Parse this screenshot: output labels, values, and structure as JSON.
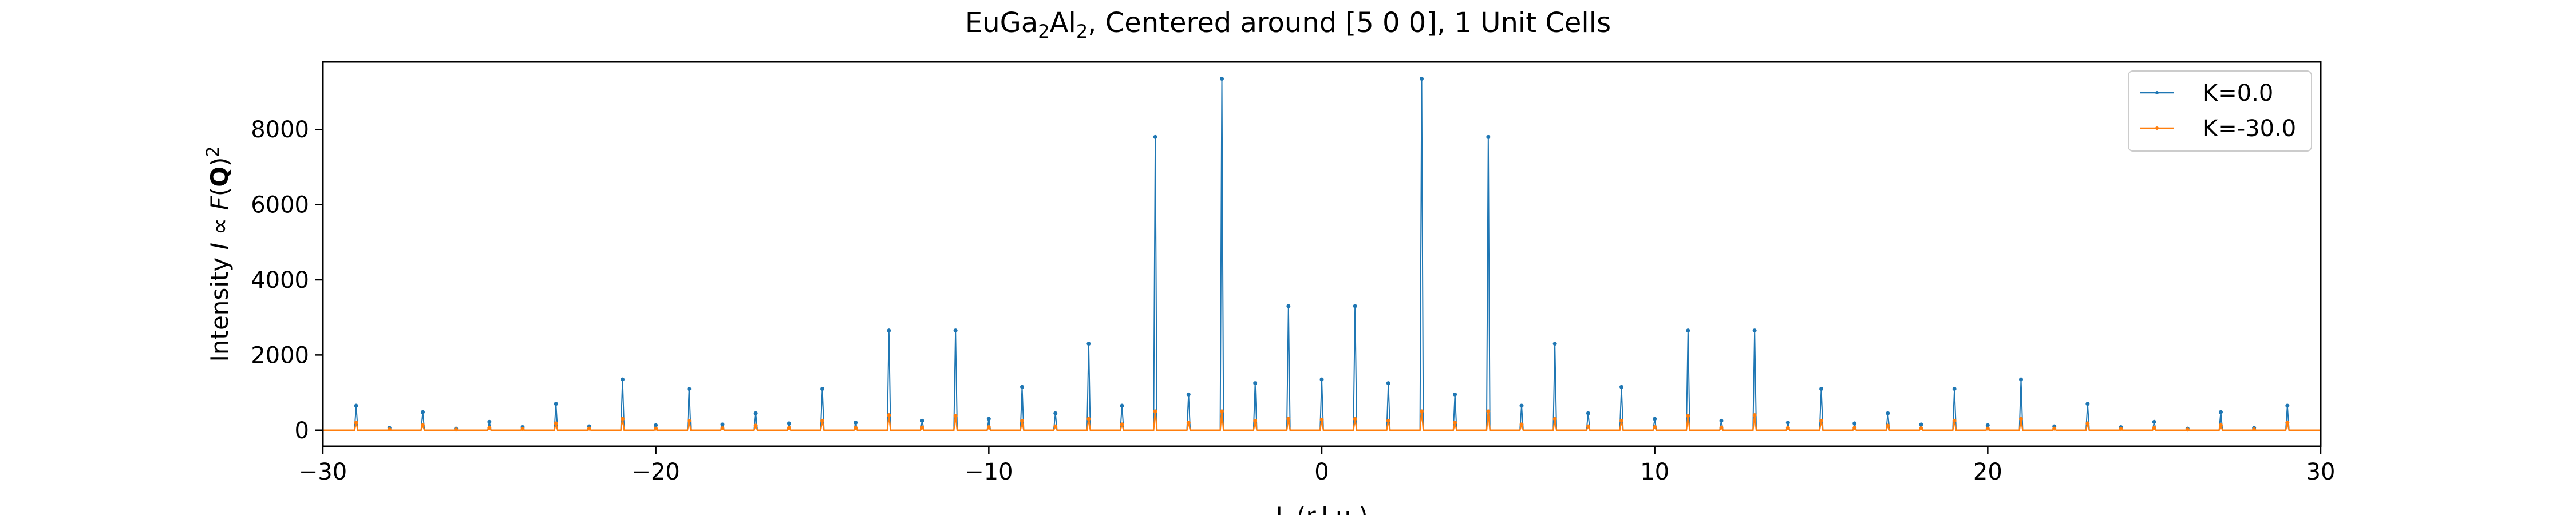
{
  "chart_data": {
    "type": "line",
    "title_main": "EuGa",
    "title_sub1": "2",
    "title_mid": "Al",
    "title_sub2": "2",
    "title_rest": ", Centered around [5 0 0], 1 Unit Cells",
    "ylabel_prefix": "Intensity ",
    "ylabel_italic": "I",
    "ylabel_mid": " ∝ ",
    "ylabel_F": "F",
    "ylabel_open": "(",
    "ylabel_Q": "Q",
    "ylabel_close": ")",
    "ylabel_exp": "2",
    "xlabel": "L (r.l.u.)",
    "xlim": [
      -30,
      30
    ],
    "ylim": [
      -430,
      9800
    ],
    "xticks": [
      -30,
      -20,
      -10,
      0,
      10,
      20,
      30
    ],
    "yticks": [
      0,
      2000,
      4000,
      6000,
      8000
    ],
    "legend_position": "top-right",
    "baseline": 0,
    "series": [
      {
        "name": "K=0.0",
        "color": "#1f77b4",
        "peaks": [
          {
            "x": -29,
            "y": 650
          },
          {
            "x": -28,
            "y": 60
          },
          {
            "x": -27,
            "y": 480
          },
          {
            "x": -26,
            "y": 40
          },
          {
            "x": -25,
            "y": 220
          },
          {
            "x": -24,
            "y": 80
          },
          {
            "x": -23,
            "y": 700
          },
          {
            "x": -22,
            "y": 100
          },
          {
            "x": -21,
            "y": 1350
          },
          {
            "x": -20,
            "y": 130
          },
          {
            "x": -19,
            "y": 1100
          },
          {
            "x": -18,
            "y": 150
          },
          {
            "x": -17,
            "y": 450
          },
          {
            "x": -16,
            "y": 180
          },
          {
            "x": -15,
            "y": 1100
          },
          {
            "x": -14,
            "y": 200
          },
          {
            "x": -13,
            "y": 2650
          },
          {
            "x": -12,
            "y": 250
          },
          {
            "x": -11,
            "y": 2650
          },
          {
            "x": -10,
            "y": 300
          },
          {
            "x": -9,
            "y": 1150
          },
          {
            "x": -8,
            "y": 450
          },
          {
            "x": -7,
            "y": 2300
          },
          {
            "x": -6,
            "y": 650
          },
          {
            "x": -5,
            "y": 7800
          },
          {
            "x": -4,
            "y": 950
          },
          {
            "x": -3,
            "y": 9350
          },
          {
            "x": -2,
            "y": 1250
          },
          {
            "x": -1,
            "y": 3300
          },
          {
            "x": 0,
            "y": 1350
          },
          {
            "x": 1,
            "y": 3300
          },
          {
            "x": 2,
            "y": 1250
          },
          {
            "x": 3,
            "y": 9350
          },
          {
            "x": 4,
            "y": 950
          },
          {
            "x": 5,
            "y": 7800
          },
          {
            "x": 6,
            "y": 650
          },
          {
            "x": 7,
            "y": 2300
          },
          {
            "x": 8,
            "y": 450
          },
          {
            "x": 9,
            "y": 1150
          },
          {
            "x": 10,
            "y": 300
          },
          {
            "x": 11,
            "y": 2650
          },
          {
            "x": 12,
            "y": 250
          },
          {
            "x": 13,
            "y": 2650
          },
          {
            "x": 14,
            "y": 200
          },
          {
            "x": 15,
            "y": 1100
          },
          {
            "x": 16,
            "y": 180
          },
          {
            "x": 17,
            "y": 450
          },
          {
            "x": 18,
            "y": 150
          },
          {
            "x": 19,
            "y": 1100
          },
          {
            "x": 20,
            "y": 130
          },
          {
            "x": 21,
            "y": 1350
          },
          {
            "x": 22,
            "y": 100
          },
          {
            "x": 23,
            "y": 700
          },
          {
            "x": 24,
            "y": 80
          },
          {
            "x": 25,
            "y": 220
          },
          {
            "x": 26,
            "y": 40
          },
          {
            "x": 27,
            "y": 480
          },
          {
            "x": 28,
            "y": 60
          },
          {
            "x": 29,
            "y": 650
          }
        ]
      },
      {
        "name": "K=-30.0",
        "color": "#ff7f0e",
        "peaks": [
          {
            "x": -29,
            "y": 200
          },
          {
            "x": -28,
            "y": 20
          },
          {
            "x": -27,
            "y": 130
          },
          {
            "x": -26,
            "y": 15
          },
          {
            "x": -25,
            "y": 60
          },
          {
            "x": -24,
            "y": 30
          },
          {
            "x": -23,
            "y": 180
          },
          {
            "x": -22,
            "y": 40
          },
          {
            "x": -21,
            "y": 300
          },
          {
            "x": -20,
            "y": 40
          },
          {
            "x": -19,
            "y": 250
          },
          {
            "x": -18,
            "y": 50
          },
          {
            "x": -17,
            "y": 120
          },
          {
            "x": -16,
            "y": 60
          },
          {
            "x": -15,
            "y": 250
          },
          {
            "x": -14,
            "y": 60
          },
          {
            "x": -13,
            "y": 400
          },
          {
            "x": -12,
            "y": 70
          },
          {
            "x": -11,
            "y": 380
          },
          {
            "x": -10,
            "y": 80
          },
          {
            "x": -9,
            "y": 250
          },
          {
            "x": -8,
            "y": 100
          },
          {
            "x": -7,
            "y": 300
          },
          {
            "x": -6,
            "y": 150
          },
          {
            "x": -5,
            "y": 500
          },
          {
            "x": -4,
            "y": 200
          },
          {
            "x": -3,
            "y": 500
          },
          {
            "x": -2,
            "y": 250
          },
          {
            "x": -1,
            "y": 300
          },
          {
            "x": 0,
            "y": 280
          },
          {
            "x": 1,
            "y": 300
          },
          {
            "x": 2,
            "y": 250
          },
          {
            "x": 3,
            "y": 500
          },
          {
            "x": 4,
            "y": 200
          },
          {
            "x": 5,
            "y": 500
          },
          {
            "x": 6,
            "y": 150
          },
          {
            "x": 7,
            "y": 300
          },
          {
            "x": 8,
            "y": 100
          },
          {
            "x": 9,
            "y": 250
          },
          {
            "x": 10,
            "y": 80
          },
          {
            "x": 11,
            "y": 380
          },
          {
            "x": 12,
            "y": 70
          },
          {
            "x": 13,
            "y": 400
          },
          {
            "x": 14,
            "y": 60
          },
          {
            "x": 15,
            "y": 250
          },
          {
            "x": 16,
            "y": 60
          },
          {
            "x": 17,
            "y": 120
          },
          {
            "x": 18,
            "y": 50
          },
          {
            "x": 19,
            "y": 250
          },
          {
            "x": 20,
            "y": 40
          },
          {
            "x": 21,
            "y": 300
          },
          {
            "x": 22,
            "y": 40
          },
          {
            "x": 23,
            "y": 180
          },
          {
            "x": 24,
            "y": 30
          },
          {
            "x": 25,
            "y": 60
          },
          {
            "x": 26,
            "y": 15
          },
          {
            "x": 27,
            "y": 130
          },
          {
            "x": 28,
            "y": 20
          },
          {
            "x": 29,
            "y": 200
          }
        ]
      }
    ]
  }
}
